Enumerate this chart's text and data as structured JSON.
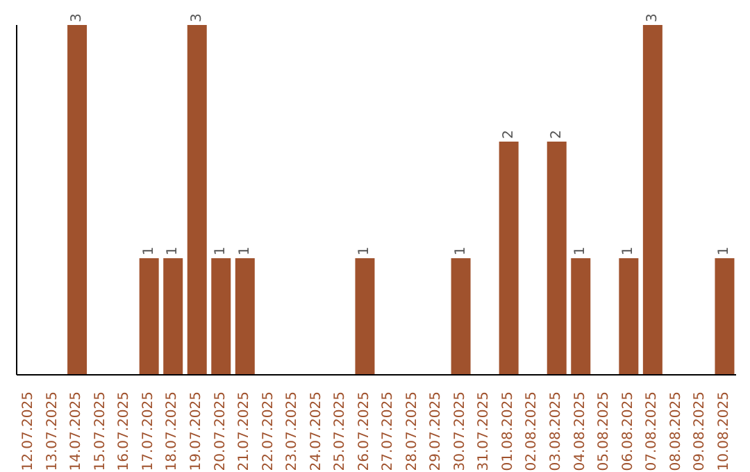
{
  "chart_data": {
    "type": "bar",
    "categories": [
      "12.07.2025",
      "13.07.2025",
      "14.07.2025",
      "15.07.2025",
      "16.07.2025",
      "17.07.2025",
      "18.07.2025",
      "19.07.2025",
      "20.07.2025",
      "21.07.2025",
      "22.07.2025",
      "23.07.2025",
      "24.07.2025",
      "25.07.2025",
      "26.07.2025",
      "27.07.2025",
      "28.07.2025",
      "29.07.2025",
      "30.07.2025",
      "31.07.2025",
      "01.08.2025",
      "02.08.2025",
      "03.08.2025",
      "04.08.2025",
      "05.08.2025",
      "06.08.2025",
      "07.08.2025",
      "08.08.2025",
      "09.08.2025",
      "10.08.2025"
    ],
    "values": [
      0,
      0,
      3,
      0,
      0,
      1,
      1,
      3,
      1,
      1,
      0,
      0,
      0,
      0,
      1,
      0,
      0,
      0,
      1,
      0,
      2,
      0,
      2,
      1,
      0,
      1,
      3,
      0,
      0,
      1
    ],
    "value_labels": [
      null,
      null,
      "3",
      null,
      null,
      "1",
      "1",
      "3",
      "1",
      "1",
      null,
      null,
      null,
      null,
      "1",
      null,
      null,
      null,
      "1",
      null,
      "2",
      null,
      "2",
      "1",
      null,
      "1",
      "3",
      null,
      null,
      "1"
    ],
    "color": "#a0522d",
    "grid": false,
    "tick_labels": "x"
  }
}
